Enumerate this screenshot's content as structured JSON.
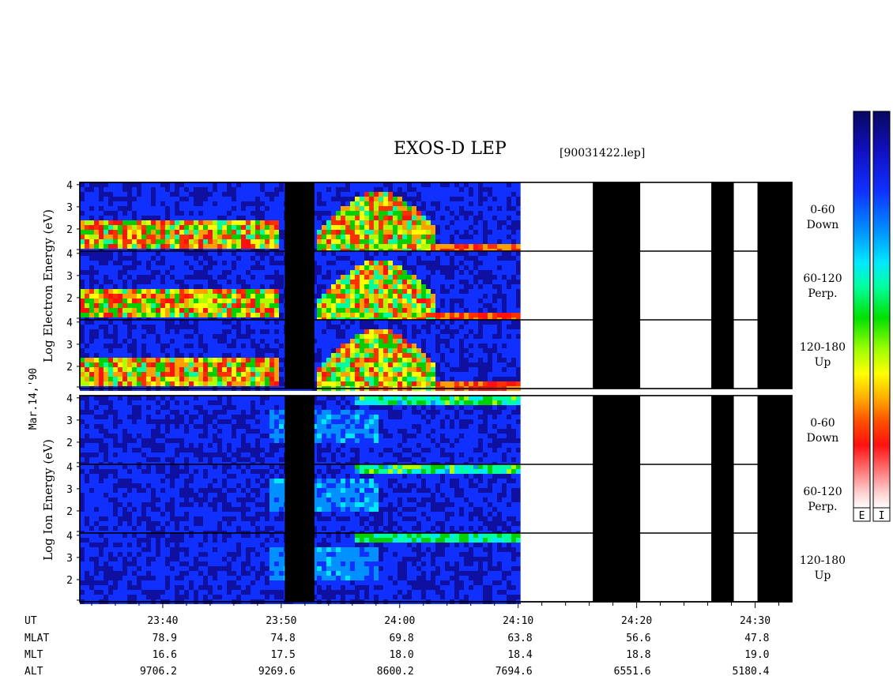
{
  "header": {
    "title": "EXOS-D LEP",
    "file": "[90031422.lep]"
  },
  "date_label": "Mar.14,'90",
  "electron_ylabel": [
    "Log",
    "Electron",
    "Energy",
    "(eV)"
  ],
  "ion_ylabel": [
    "Log",
    "Ion",
    "Energy",
    "(eV)"
  ],
  "panels": [
    {
      "group": "electron",
      "label_top": "0-60",
      "label_bottom": "Down"
    },
    {
      "group": "electron",
      "label_top": "60-120",
      "label_bottom": "Perp."
    },
    {
      "group": "electron",
      "label_top": "120-180",
      "label_bottom": "Up"
    },
    {
      "group": "ion",
      "label_top": "0-60",
      "label_bottom": "Down"
    },
    {
      "group": "ion",
      "label_top": "60-120",
      "label_bottom": "Perp."
    },
    {
      "group": "ion",
      "label_top": "120-180",
      "label_bottom": "Up"
    }
  ],
  "colorbar": {
    "labels": [
      "E",
      "I"
    ],
    "colors_top_to_bottom": [
      "#0a0a6e",
      "#1a1aff",
      "#0080ff",
      "#00e0ff",
      "#00ffb0",
      "#00e000",
      "#b0ff00",
      "#ffff00",
      "#ffb000",
      "#ff5000",
      "#ff1010",
      "#ff8080",
      "#ffd0d0",
      "#ffffff"
    ]
  },
  "chart_data": {
    "type": "heatmap",
    "title": "EXOS-D LEP",
    "x_axis": "UT",
    "y_ticks": [
      2,
      3,
      4
    ],
    "x_row_labels": [
      "UT",
      "MLAT",
      "MLT",
      "ALT"
    ],
    "x_ticks": [
      {
        "UT": "23:40",
        "MLAT": "78.9",
        "MLT": "16.6",
        "ALT": "9706.2"
      },
      {
        "UT": "23:50",
        "MLAT": "74.8",
        "MLT": "17.5",
        "ALT": "9269.6"
      },
      {
        "UT": "24:00",
        "MLAT": "69.8",
        "MLT": "18.0",
        "ALT": "8600.2"
      },
      {
        "UT": "24:10",
        "MLAT": "63.8",
        "MLT": "18.4",
        "ALT": "7694.6"
      },
      {
        "UT": "24:20",
        "MLAT": "56.6",
        "MLT": "18.8",
        "ALT": "6551.6"
      },
      {
        "UT": "24:30",
        "MLAT": "47.8",
        "MLT": "19.0",
        "ALT": "5180.4"
      }
    ],
    "x_range_minutes": [
      -27,
      33.1
    ],
    "y_range": [
      1,
      4.1
    ],
    "data_gaps_ut": [
      [
        "23:50.3",
        "23:52.8"
      ],
      [
        "24:10.2",
        "24:16.3"
      ],
      [
        "24:20.3",
        "24:26.3"
      ],
      [
        "24:28.2",
        "24:30.2"
      ]
    ],
    "black_fill_ut": [
      [
        "24:16.3",
        "24:20.3"
      ],
      [
        "24:26.3",
        "24:28.2"
      ],
      [
        "24:30.2",
        "24:33.1"
      ]
    ]
  }
}
